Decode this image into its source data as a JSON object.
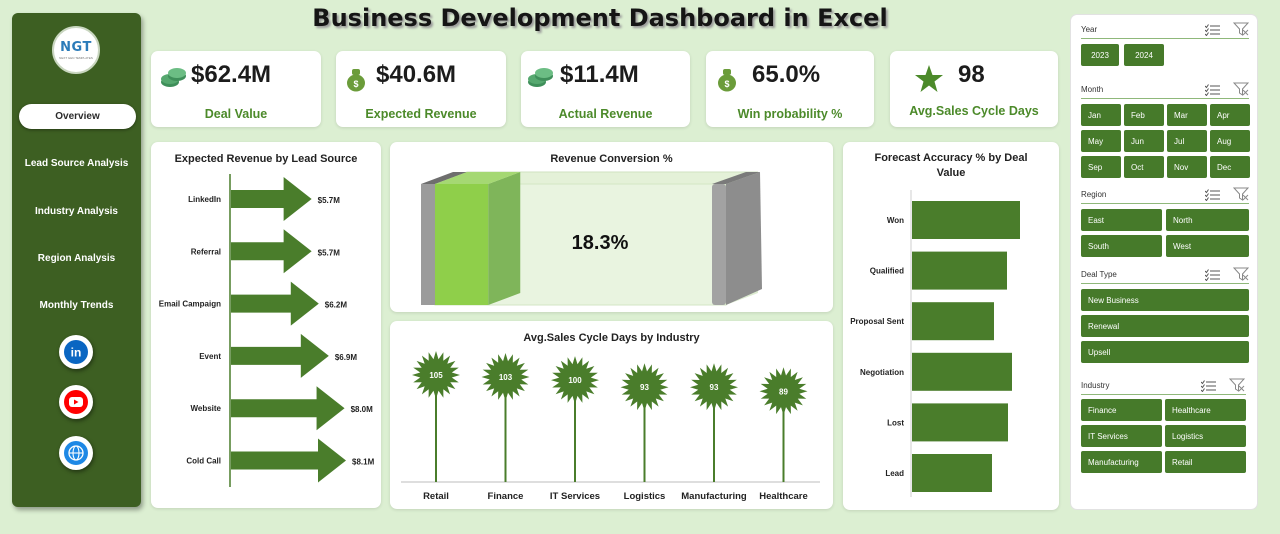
{
  "title": "Business Development Dashboard in Excel",
  "logo": {
    "text": "NGT",
    "subtitle": "NEXT GEN TEMPLATES"
  },
  "nav": [
    "Overview",
    "Lead Source Analysis",
    "Industry  Analysis",
    "Region Analysis",
    "Monthly Trends"
  ],
  "social": [
    "linkedin-icon",
    "youtube-icon",
    "globe-icon"
  ],
  "kpis": [
    {
      "value": "$62.4M",
      "label": "Deal Value",
      "icon": "money-stack-icon"
    },
    {
      "value": "$40.6M",
      "label": "Expected Revenue",
      "icon": "money-bag-icon"
    },
    {
      "value": "$11.4M",
      "label": "Actual Revenue",
      "icon": "money-stack-icon"
    },
    {
      "value": "65.0%",
      "label": "Win probability %",
      "icon": "money-bag-icon"
    },
    {
      "value": "98",
      "label": "Avg.Sales Cycle Days",
      "icon": "star-icon"
    }
  ],
  "colors": {
    "bar": "#4a7d2b",
    "accent": "#4c8a2a",
    "sidebar": "#3d5f22",
    "slicer_button": "#467a2a",
    "light_green": "#8fcf4a"
  },
  "chart_data": [
    {
      "type": "bar",
      "title": "Expected Revenue by Lead Source",
      "orientation": "horizontal",
      "categories": [
        "LinkedIn",
        "Referral",
        "Email Campaign",
        "Event",
        "Website",
        "Cold Call"
      ],
      "values": [
        5.7,
        5.7,
        6.2,
        6.9,
        8.0,
        8.1
      ],
      "data_labels": [
        "$5.7M",
        "$5.7M",
        "$6.2M",
        "$6.9M",
        "$8.0M",
        "$8.1M"
      ]
    },
    {
      "type": "bar",
      "title": "Revenue Conversion %",
      "values": [
        18.3
      ],
      "data_labels": [
        "18.3%"
      ],
      "ylim": [
        0,
        100
      ]
    },
    {
      "type": "bar",
      "title": "Avg.Sales Cycle Days by Industry",
      "categories": [
        "Retail",
        "Finance",
        "IT Services",
        "Logistics",
        "Manufacturing",
        "Healthcare"
      ],
      "values": [
        105,
        103,
        100,
        93,
        93,
        89
      ],
      "data_labels": [
        "105",
        "103",
        "100",
        "93",
        "93",
        "89"
      ]
    },
    {
      "type": "bar",
      "title": "Forecast Accuracy % by  Deal Value",
      "orientation": "horizontal",
      "categories": [
        "Won",
        "Qualified",
        "Proposal Sent",
        "Negotiation",
        "Lost",
        "Lead"
      ],
      "values": [
        108,
        95,
        82,
        100,
        96,
        80
      ]
    }
  ],
  "slicers": {
    "year": {
      "label": "Year",
      "items": [
        "2023",
        "2024"
      ]
    },
    "month": {
      "label": "Month",
      "items": [
        "Jan",
        "Feb",
        "Mar",
        "Apr",
        "May",
        "Jun",
        "Jul",
        "Aug",
        "Sep",
        "Oct",
        "Nov",
        "Dec"
      ]
    },
    "region": {
      "label": "Region",
      "items": [
        "East",
        "North",
        "South",
        "West"
      ]
    },
    "dealtype": {
      "label": "Deal Type",
      "items": [
        "New Business",
        "Renewal",
        "Upsell"
      ]
    },
    "industry": {
      "label": "Industry",
      "items": [
        "Finance",
        "Healthcare",
        "IT Services",
        "Logistics",
        "Manufacturing",
        "Retail"
      ]
    }
  }
}
